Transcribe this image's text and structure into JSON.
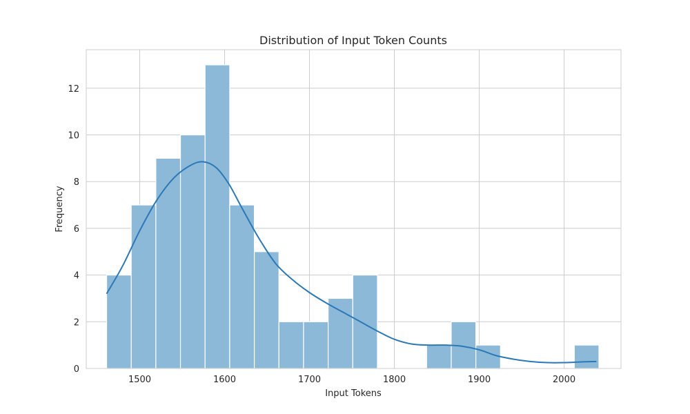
{
  "chart_data": {
    "type": "bar",
    "subtype": "histogram-with-kde",
    "title": "Distribution of Input Token Counts",
    "xlabel": "Input Tokens",
    "ylabel": "Frequency",
    "xlim": [
      1437,
      2067
    ],
    "ylim": [
      0,
      13.65
    ],
    "xticks": [
      1500,
      1600,
      1700,
      1800,
      1900,
      2000
    ],
    "yticks": [
      0,
      2,
      4,
      6,
      8,
      10,
      12
    ],
    "grid": true,
    "bins": [
      {
        "x0": 1461,
        "x1": 1490,
        "count": 4
      },
      {
        "x0": 1490,
        "x1": 1519,
        "count": 7
      },
      {
        "x0": 1519,
        "x1": 1548,
        "count": 9
      },
      {
        "x0": 1548,
        "x1": 1577,
        "count": 10
      },
      {
        "x0": 1577,
        "x1": 1606,
        "count": 13
      },
      {
        "x0": 1606,
        "x1": 1635,
        "count": 7
      },
      {
        "x0": 1635,
        "x1": 1664,
        "count": 5
      },
      {
        "x0": 1664,
        "x1": 1693,
        "count": 2
      },
      {
        "x0": 1693,
        "x1": 1722,
        "count": 2
      },
      {
        "x0": 1722,
        "x1": 1751,
        "count": 3
      },
      {
        "x0": 1751,
        "x1": 1780,
        "count": 4
      },
      {
        "x0": 1780,
        "x1": 1809,
        "count": 0
      },
      {
        "x0": 1809,
        "x1": 1838,
        "count": 0
      },
      {
        "x0": 1838,
        "x1": 1867,
        "count": 1
      },
      {
        "x0": 1867,
        "x1": 1896,
        "count": 2
      },
      {
        "x0": 1896,
        "x1": 1925,
        "count": 1
      },
      {
        "x0": 1925,
        "x1": 1954,
        "count": 0
      },
      {
        "x0": 1954,
        "x1": 1983,
        "count": 0
      },
      {
        "x0": 1983,
        "x1": 2012,
        "count": 0
      },
      {
        "x0": 2012,
        "x1": 2041,
        "count": 1
      }
    ],
    "kde": {
      "x": [
        1461,
        1480,
        1500,
        1520,
        1540,
        1560,
        1575,
        1590,
        1605,
        1620,
        1640,
        1660,
        1680,
        1700,
        1720,
        1740,
        1760,
        1780,
        1800,
        1820,
        1840,
        1860,
        1880,
        1900,
        1920,
        1940,
        1960,
        1980,
        2000,
        2020,
        2038
      ],
      "y": [
        3.2,
        4.4,
        5.9,
        7.2,
        8.15,
        8.7,
        8.85,
        8.6,
        7.9,
        6.9,
        5.6,
        4.5,
        3.8,
        3.25,
        2.8,
        2.4,
        2.0,
        1.6,
        1.25,
        1.05,
        1.0,
        1.0,
        0.95,
        0.8,
        0.55,
        0.4,
        0.3,
        0.25,
        0.25,
        0.28,
        0.3
      ]
    },
    "colors": {
      "bar_fill": "#8db9d9",
      "bar_edge": "#ffffff",
      "kde_line": "#2a78b5",
      "grid": "#cccccc",
      "frame": "#cccccc",
      "text": "#262626"
    }
  }
}
